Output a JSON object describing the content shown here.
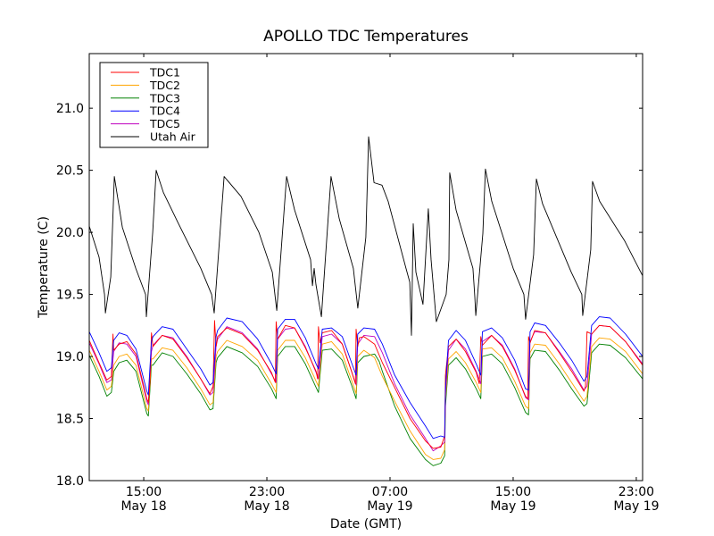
{
  "chart_data": {
    "type": "line",
    "title": "APOLLO TDC Temperatures",
    "xlabel": "Date (GMT)",
    "ylabel": "Temperature (C)",
    "x_units": "hours since May 18 00:00 GMT",
    "xlim": [
      11.46,
      47.41
    ],
    "ylim": [
      18.0,
      21.44
    ],
    "grid": false,
    "legend_position": "top-left",
    "x_ticks": [
      {
        "value": 15,
        "line1": "15:00",
        "line2": "May 18"
      },
      {
        "value": 23,
        "line1": "23:00",
        "line2": "May 18"
      },
      {
        "value": 31,
        "line1": "07:00",
        "line2": "May 19"
      },
      {
        "value": 39,
        "line1": "15:00",
        "line2": "May 19"
      },
      {
        "value": 47,
        "line1": "23:00",
        "line2": "May 19"
      }
    ],
    "y_ticks": [
      {
        "value": 18.0,
        "label": "18.0"
      },
      {
        "value": 18.5,
        "label": "18.5"
      },
      {
        "value": 19.0,
        "label": "19.0"
      },
      {
        "value": 19.5,
        "label": "19.5"
      },
      {
        "value": 20.0,
        "label": "20.0"
      },
      {
        "value": 20.5,
        "label": "20.5"
      },
      {
        "value": 21.0,
        "label": "21.0"
      }
    ],
    "series": [
      {
        "name": "TDC1",
        "color": "#ff0000",
        "x": [
          11.46,
          12.1,
          12.6,
          12.9,
          13.0,
          13.05,
          13.4,
          13.9,
          14.5,
          15.2,
          15.3,
          15.4,
          15.5,
          15.6,
          16.2,
          16.9,
          17.8,
          18.7,
          19.3,
          19.5,
          19.6,
          19.7,
          19.8,
          20.4,
          21.4,
          22.4,
          23.3,
          23.55,
          23.6,
          23.7,
          24.2,
          24.8,
          25.5,
          26.2,
          26.3,
          26.35,
          26.45,
          26.6,
          27.2,
          27.9,
          28.5,
          28.75,
          28.8,
          28.9,
          29.0,
          29.3,
          30.0,
          30.5,
          31.3,
          32.3,
          33.3,
          33.8,
          34.3,
          34.55,
          34.6,
          34.8,
          35.3,
          35.9,
          36.6,
          36.8,
          36.9,
          37.0,
          37.6,
          38.3,
          39.1,
          39.8,
          39.95,
          40.0,
          40.1,
          40.4,
          41.1,
          42.0,
          42.8,
          43.6,
          43.7,
          43.8,
          44.1,
          44.6,
          45.3,
          46.3,
          47.41
        ],
        "y": [
          19.13,
          18.95,
          18.81,
          18.84,
          19.18,
          19.05,
          19.1,
          19.12,
          19.02,
          18.66,
          18.63,
          18.78,
          19.19,
          19.08,
          19.17,
          19.14,
          18.99,
          18.82,
          18.7,
          18.76,
          19.29,
          19.08,
          19.16,
          19.23,
          19.18,
          19.05,
          18.87,
          18.79,
          19.28,
          19.14,
          19.25,
          19.23,
          19.07,
          18.88,
          18.82,
          19.24,
          19.11,
          19.19,
          19.21,
          19.1,
          18.88,
          18.78,
          19.22,
          19.08,
          19.15,
          19.16,
          19.1,
          18.95,
          18.75,
          18.5,
          18.32,
          18.26,
          18.27,
          18.36,
          18.85,
          19.08,
          19.14,
          19.04,
          18.87,
          18.78,
          19.16,
          19.09,
          19.17,
          19.08,
          18.89,
          18.68,
          18.66,
          19.16,
          19.11,
          19.21,
          19.19,
          19.03,
          18.88,
          18.72,
          18.76,
          19.2,
          19.18,
          19.25,
          19.24,
          19.12,
          18.93
        ]
      },
      {
        "name": "TDC2",
        "color": "#ffa500",
        "x": [
          11.46,
          12.1,
          12.6,
          12.9,
          13.05,
          13.4,
          13.9,
          14.5,
          15.2,
          15.3,
          15.5,
          15.6,
          16.2,
          16.9,
          17.8,
          18.7,
          19.3,
          19.5,
          19.7,
          19.8,
          20.4,
          21.4,
          22.4,
          23.3,
          23.6,
          23.7,
          24.2,
          24.8,
          25.5,
          26.2,
          26.35,
          26.6,
          27.2,
          27.9,
          28.5,
          28.8,
          28.9,
          29.3,
          30.0,
          30.5,
          31.3,
          32.3,
          33.3,
          33.8,
          34.3,
          34.55,
          34.6,
          34.8,
          35.3,
          35.9,
          36.6,
          36.9,
          37.0,
          37.6,
          38.3,
          39.1,
          39.8,
          40.0,
          40.1,
          40.4,
          41.1,
          42.0,
          42.8,
          43.6,
          43.8,
          44.1,
          44.6,
          45.3,
          46.3,
          47.41
        ],
        "y": [
          19.05,
          18.88,
          18.73,
          18.76,
          18.93,
          19.0,
          19.02,
          18.93,
          18.58,
          18.56,
          18.98,
          18.98,
          19.07,
          19.05,
          18.91,
          18.74,
          18.61,
          18.63,
          19.0,
          19.04,
          19.13,
          19.08,
          18.97,
          18.78,
          18.71,
          19.05,
          19.13,
          19.13,
          18.99,
          18.8,
          18.76,
          19.1,
          19.12,
          19.02,
          18.81,
          18.7,
          19.0,
          19.05,
          18.99,
          18.84,
          18.64,
          18.4,
          18.21,
          18.17,
          18.18,
          18.25,
          18.65,
          18.98,
          19.04,
          18.95,
          18.79,
          18.71,
          19.06,
          19.07,
          18.99,
          18.8,
          18.6,
          18.58,
          19.03,
          19.1,
          19.09,
          18.94,
          18.79,
          18.64,
          18.68,
          19.08,
          19.15,
          19.14,
          19.04,
          18.86
        ]
      },
      {
        "name": "TDC3",
        "color": "#008000",
        "x": [
          11.46,
          12.1,
          12.6,
          12.9,
          13.05,
          13.4,
          13.9,
          14.5,
          15.2,
          15.3,
          15.5,
          15.6,
          16.2,
          16.9,
          17.8,
          18.7,
          19.3,
          19.5,
          19.7,
          19.8,
          20.4,
          21.4,
          22.4,
          23.3,
          23.6,
          23.7,
          24.2,
          24.8,
          25.5,
          26.2,
          26.35,
          26.6,
          27.2,
          27.9,
          28.5,
          28.8,
          28.9,
          29.3,
          30.0,
          30.3,
          30.5,
          31.3,
          32.3,
          33.3,
          33.8,
          34.3,
          34.55,
          34.6,
          34.8,
          35.3,
          35.9,
          36.6,
          36.9,
          37.0,
          37.6,
          38.3,
          39.1,
          39.8,
          40.0,
          40.1,
          40.4,
          41.1,
          42.0,
          42.8,
          43.6,
          43.8,
          44.1,
          44.6,
          45.3,
          46.3,
          47.41
        ],
        "y": [
          19.01,
          18.84,
          18.68,
          18.71,
          18.88,
          18.95,
          18.97,
          18.88,
          18.54,
          18.52,
          18.93,
          18.93,
          19.03,
          19.0,
          18.86,
          18.7,
          18.57,
          18.58,
          18.95,
          18.99,
          19.08,
          19.03,
          18.92,
          18.74,
          18.66,
          19.0,
          19.08,
          19.08,
          18.94,
          18.75,
          18.71,
          19.05,
          19.06,
          18.97,
          18.77,
          18.66,
          18.95,
          19.0,
          19.02,
          18.96,
          18.88,
          18.6,
          18.34,
          18.17,
          18.12,
          18.14,
          18.2,
          18.6,
          18.93,
          18.99,
          18.9,
          18.74,
          18.66,
          19.0,
          19.02,
          18.94,
          18.75,
          18.55,
          18.53,
          18.98,
          19.05,
          19.04,
          18.89,
          18.74,
          18.6,
          18.62,
          19.03,
          19.1,
          19.09,
          18.99,
          18.82
        ]
      },
      {
        "name": "TDC4",
        "color": "#0000ff",
        "x": [
          11.46,
          12.1,
          12.6,
          12.9,
          13.05,
          13.4,
          13.9,
          14.5,
          15.2,
          15.3,
          15.5,
          15.6,
          16.2,
          16.9,
          17.8,
          18.7,
          19.3,
          19.5,
          19.7,
          19.8,
          20.4,
          21.4,
          22.4,
          23.3,
          23.6,
          23.7,
          24.2,
          24.8,
          25.5,
          26.2,
          26.35,
          26.6,
          27.2,
          27.9,
          28.5,
          28.8,
          28.9,
          29.3,
          30.0,
          30.5,
          31.3,
          32.3,
          33.3,
          33.8,
          34.3,
          34.55,
          34.6,
          34.8,
          35.3,
          35.9,
          36.6,
          36.9,
          37.0,
          37.6,
          38.3,
          39.1,
          39.8,
          40.0,
          40.1,
          40.4,
          41.1,
          42.0,
          42.8,
          43.6,
          43.8,
          44.1,
          44.6,
          45.3,
          46.3,
          47.41
        ],
        "y": [
          19.2,
          19.03,
          18.88,
          18.91,
          19.13,
          19.19,
          19.17,
          19.06,
          18.72,
          18.69,
          19.12,
          19.16,
          19.24,
          19.22,
          19.06,
          18.9,
          18.77,
          18.79,
          19.16,
          19.21,
          19.31,
          19.28,
          19.14,
          18.94,
          18.86,
          19.22,
          19.3,
          19.3,
          19.15,
          18.94,
          18.9,
          19.22,
          19.23,
          19.16,
          18.95,
          18.85,
          19.18,
          19.23,
          19.22,
          19.1,
          18.85,
          18.63,
          18.44,
          18.34,
          18.36,
          18.35,
          18.74,
          19.13,
          19.21,
          19.13,
          18.94,
          18.85,
          19.2,
          19.23,
          19.15,
          18.97,
          18.74,
          18.73,
          19.2,
          19.27,
          19.25,
          19.11,
          18.97,
          18.8,
          18.84,
          19.25,
          19.32,
          19.31,
          19.18,
          19.0
        ]
      },
      {
        "name": "TDC5",
        "color": "#bf00bf",
        "x": [
          11.46,
          12.1,
          12.6,
          12.9,
          13.05,
          13.4,
          13.9,
          14.5,
          15.2,
          15.3,
          15.5,
          15.6,
          16.2,
          16.9,
          17.8,
          18.7,
          19.3,
          19.5,
          19.7,
          19.8,
          20.4,
          21.4,
          22.4,
          23.3,
          23.6,
          23.7,
          24.2,
          24.8,
          25.5,
          26.2,
          26.35,
          26.6,
          27.2,
          27.9,
          28.5,
          28.8,
          28.9,
          29.3,
          30.0,
          30.5,
          31.3,
          32.3,
          33.3,
          33.8,
          34.3,
          34.55,
          34.6,
          34.8,
          35.3,
          35.9,
          36.6,
          36.9,
          37.0,
          37.6,
          38.3,
          39.1,
          39.8,
          40.0,
          40.1,
          40.4,
          41.1,
          42.0,
          42.8,
          43.6,
          43.8,
          44.1,
          44.6,
          45.3,
          46.3,
          47.41
        ],
        "y": [
          19.11,
          18.94,
          18.79,
          18.81,
          19.04,
          19.11,
          19.1,
          19.0,
          18.64,
          18.61,
          19.04,
          19.09,
          19.17,
          19.15,
          19.0,
          18.82,
          18.69,
          18.71,
          19.08,
          19.14,
          19.24,
          19.19,
          19.06,
          18.86,
          18.79,
          19.14,
          19.22,
          19.23,
          19.08,
          18.87,
          18.82,
          19.16,
          19.18,
          19.1,
          18.88,
          18.77,
          19.1,
          19.17,
          19.16,
          19.03,
          18.78,
          18.53,
          18.34,
          18.24,
          18.28,
          18.31,
          18.7,
          19.05,
          19.14,
          19.06,
          18.88,
          18.78,
          19.12,
          19.17,
          19.09,
          18.9,
          18.67,
          18.65,
          19.12,
          19.2,
          19.19,
          19.04,
          18.9,
          18.73,
          18.76,
          19.18,
          19.25,
          19.24,
          19.12,
          18.94
        ]
      },
      {
        "name": "Utah Air",
        "color": "#000000",
        "x": [
          11.46,
          12.1,
          12.45,
          12.51,
          12.86,
          13.09,
          13.61,
          14.48,
          15.12,
          15.17,
          15.58,
          15.81,
          16.28,
          17.26,
          18.71,
          19.41,
          19.58,
          20.22,
          21.32,
          22.48,
          23.35,
          23.64,
          24.28,
          24.8,
          25.84,
          25.96,
          26.07,
          26.19,
          26.54,
          27.17,
          27.7,
          28.62,
          28.91,
          29.43,
          29.61,
          29.96,
          30.48,
          30.88,
          32.04,
          32.28,
          32.39,
          32.51,
          32.68,
          33.14,
          33.49,
          33.67,
          34.01,
          34.65,
          34.83,
          34.88,
          35.29,
          36.39,
          36.51,
          36.57,
          37.03,
          37.2,
          37.61,
          39.0,
          39.7,
          39.81,
          40.33,
          40.51,
          40.91,
          42.77,
          43.46,
          43.52,
          44.04,
          44.16,
          44.62,
          46.25,
          47.41
        ],
        "y": [
          20.05,
          19.8,
          19.5,
          19.35,
          19.64,
          20.45,
          20.04,
          19.71,
          19.5,
          19.32,
          20.0,
          20.5,
          20.32,
          20.07,
          19.71,
          19.5,
          19.35,
          20.45,
          20.29,
          20.0,
          19.68,
          19.37,
          20.45,
          20.18,
          19.78,
          19.57,
          19.71,
          19.58,
          19.32,
          20.45,
          20.11,
          19.71,
          19.39,
          19.96,
          20.77,
          20.4,
          20.38,
          20.25,
          19.71,
          19.6,
          19.17,
          20.07,
          19.68,
          19.42,
          20.19,
          19.78,
          19.28,
          19.5,
          19.78,
          20.48,
          20.18,
          19.71,
          19.48,
          19.33,
          19.99,
          20.51,
          20.25,
          19.71,
          19.5,
          19.3,
          19.82,
          20.43,
          20.23,
          19.68,
          19.5,
          19.33,
          19.86,
          20.41,
          20.25,
          19.93,
          19.65
        ]
      }
    ]
  }
}
